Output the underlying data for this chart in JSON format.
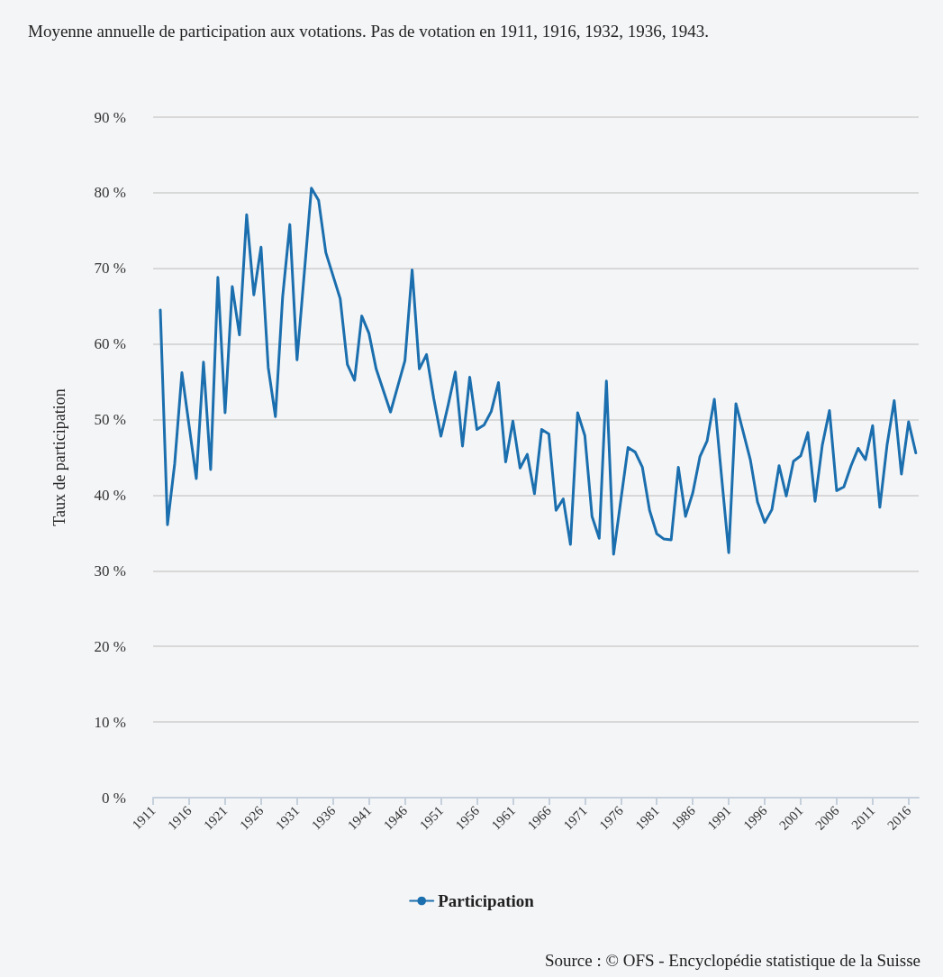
{
  "chart_data": {
    "type": "line",
    "title": "Moyenne annuelle de participation aux votations. Pas de votation en 1911, 1916, 1932, 1936, 1943.",
    "ylabel": "Taux de participation",
    "annotations": [
      "Source : © OFS - Encyclopédie statistique de la Suisse"
    ],
    "x": [
      1912,
      1913,
      1914,
      1915,
      1917,
      1918,
      1919,
      1920,
      1921,
      1922,
      1923,
      1924,
      1925,
      1926,
      1927,
      1928,
      1929,
      1930,
      1931,
      1933,
      1934,
      1935,
      1937,
      1938,
      1939,
      1940,
      1941,
      1942,
      1944,
      1945,
      1946,
      1947,
      1948,
      1949,
      1950,
      1951,
      1952,
      1953,
      1954,
      1955,
      1956,
      1957,
      1958,
      1959,
      1960,
      1961,
      1962,
      1963,
      1964,
      1965,
      1966,
      1967,
      1968,
      1969,
      1970,
      1971,
      1972,
      1973,
      1974,
      1975,
      1976,
      1977,
      1978,
      1979,
      1980,
      1981,
      1982,
      1983,
      1984,
      1985,
      1986,
      1987,
      1988,
      1989,
      1990,
      1991,
      1992,
      1993,
      1994,
      1995,
      1996,
      1997,
      1998,
      1999,
      2000,
      2001,
      2002,
      2003,
      2004,
      2005,
      2006,
      2007,
      2008,
      2009,
      2010,
      2011,
      2012,
      2013,
      2014,
      2015,
      2016,
      2017
    ],
    "series": [
      {
        "name": "Participation",
        "color": "#1b6fae",
        "values": [
          64.5,
          36.1,
          44.2,
          56.2,
          42.2,
          57.6,
          43.4,
          68.8,
          50.9,
          67.6,
          61.2,
          77.1,
          66.5,
          72.8,
          56.9,
          50.4,
          66.2,
          75.8,
          57.9,
          80.6,
          79.0,
          72.1,
          66.0,
          57.3,
          55.2,
          63.7,
          61.4,
          56.7,
          51.0,
          54.4,
          57.8,
          69.8,
          56.7,
          58.6,
          52.8,
          47.8,
          51.9,
          56.3,
          46.5,
          55.6,
          48.7,
          49.3,
          51.1,
          54.9,
          44.4,
          49.8,
          43.6,
          45.4,
          40.2,
          48.7,
          48.1,
          38.0,
          39.5,
          33.5,
          50.9,
          47.9,
          37.2,
          34.3,
          55.1,
          32.2,
          39.3,
          46.3,
          45.7,
          43.7,
          38.0,
          34.9,
          34.2,
          34.1,
          43.7,
          37.2,
          40.3,
          45.1,
          47.2,
          52.7,
          42.5,
          32.4,
          52.1,
          48.4,
          44.7,
          39.1,
          36.4,
          38.1,
          43.9,
          39.9,
          44.5,
          45.2,
          48.3,
          39.2,
          46.6,
          51.2,
          40.6,
          41.1,
          43.9,
          46.2,
          44.7,
          49.2,
          38.4,
          46.6,
          52.5,
          42.8,
          49.7,
          45.6
        ]
      }
    ],
    "xlim": [
      1911,
      2017.4
    ],
    "xticks": [
      1911,
      1916,
      1921,
      1926,
      1931,
      1936,
      1941,
      1946,
      1951,
      1956,
      1961,
      1966,
      1971,
      1976,
      1981,
      1986,
      1991,
      1996,
      2001,
      2006,
      2011,
      2016
    ],
    "ylim": [
      0,
      90
    ],
    "yticks": [
      {
        "value": 0,
        "label": "0 %"
      },
      {
        "value": 10,
        "label": "10 %"
      },
      {
        "value": 20,
        "label": "20 %"
      },
      {
        "value": 30,
        "label": "30 %"
      },
      {
        "value": 40,
        "label": "40 %"
      },
      {
        "value": 50,
        "label": "50 %"
      },
      {
        "value": 60,
        "label": "60 %"
      },
      {
        "value": 70,
        "label": "70 %"
      },
      {
        "value": 80,
        "label": "80 %"
      },
      {
        "value": 90,
        "label": "90 %"
      }
    ],
    "grid": "y",
    "legend": "bottom",
    "marker": "none",
    "line_style": "solid"
  }
}
